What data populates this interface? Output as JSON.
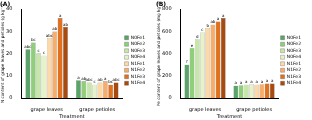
{
  "chart_data": [
    {
      "type": "bar",
      "title": "(A)",
      "x_label": "Treatment",
      "y_label": "N content of grape leaves and petioles (g kg⁻¹)",
      "categories": [
        "grape leaves",
        "grape petioles"
      ],
      "series": [
        {
          "name": "N0Fe1",
          "color": "#5aa469",
          "values": [
            22,
            8
          ],
          "significance": [
            "abc",
            "a"
          ]
        },
        {
          "name": "N0Fe2",
          "color": "#8fcf7a",
          "values": [
            25,
            7.5
          ],
          "significance": [
            "bc",
            "ab"
          ]
        },
        {
          "name": "N0Fe3",
          "color": "#c6e7a8",
          "values": [
            20,
            7
          ],
          "significance": [
            "c",
            "abc"
          ]
        },
        {
          "name": "N0Fe4",
          "color": "#e6f2c9",
          "values": [
            19,
            6
          ],
          "significance": [
            "c",
            "c"
          ]
        },
        {
          "name": "N1Fe1",
          "color": "#fdd9a8",
          "values": [
            27,
            7
          ],
          "significance": [
            "abc",
            "ab"
          ]
        },
        {
          "name": "N1Fe2",
          "color": "#f9ad6a",
          "values": [
            30,
            7.5
          ],
          "significance": [
            "ab",
            "a"
          ]
        },
        {
          "name": "N1Fe3",
          "color": "#e0721f",
          "values": [
            36,
            6
          ],
          "significance": [
            "a",
            "bc"
          ]
        },
        {
          "name": "N1Fe4",
          "color": "#a94a0f",
          "values": [
            32,
            7
          ],
          "significance": [
            "ab",
            "abc"
          ]
        }
      ],
      "ylim": [
        0,
        40
      ],
      "yticks": [
        0,
        10,
        20,
        30,
        40
      ],
      "legend": "right"
    },
    {
      "type": "bar",
      "title": "(B)",
      "x_label": "Treatment",
      "y_label": "Fe content of grape leaves and petioles (mg kg⁻¹)",
      "categories": [
        "grape leaves",
        "grape petioles"
      ],
      "series": [
        {
          "name": "N0Fe1",
          "color": "#5aa469",
          "values": [
            300,
            110
          ],
          "significance": [
            "f",
            "a"
          ]
        },
        {
          "name": "N0Fe2",
          "color": "#8fcf7a",
          "values": [
            450,
            115
          ],
          "significance": [
            "e",
            "a"
          ]
        },
        {
          "name": "N0Fe3",
          "color": "#c6e7a8",
          "values": [
            530,
            120
          ],
          "significance": [
            "d",
            "a"
          ]
        },
        {
          "name": "N0Fe4",
          "color": "#e6f2c9",
          "values": [
            590,
            125
          ],
          "significance": [
            "c",
            "a"
          ]
        },
        {
          "name": "N1Fe1",
          "color": "#fdd9a8",
          "values": [
            630,
            120
          ],
          "significance": [
            "b",
            "a"
          ]
        },
        {
          "name": "N1Fe2",
          "color": "#f9ad6a",
          "values": [
            660,
            125
          ],
          "significance": [
            "ab",
            "a"
          ]
        },
        {
          "name": "N1Fe3",
          "color": "#e0721f",
          "values": [
            690,
            130
          ],
          "significance": [
            "a",
            "a"
          ]
        },
        {
          "name": "N1Fe4",
          "color": "#a94a0f",
          "values": [
            720,
            130
          ],
          "significance": [
            "a",
            "a"
          ]
        }
      ],
      "ylim": [
        0,
        800
      ],
      "yticks": [
        0,
        200,
        400,
        600,
        800
      ],
      "legend": "right"
    }
  ]
}
